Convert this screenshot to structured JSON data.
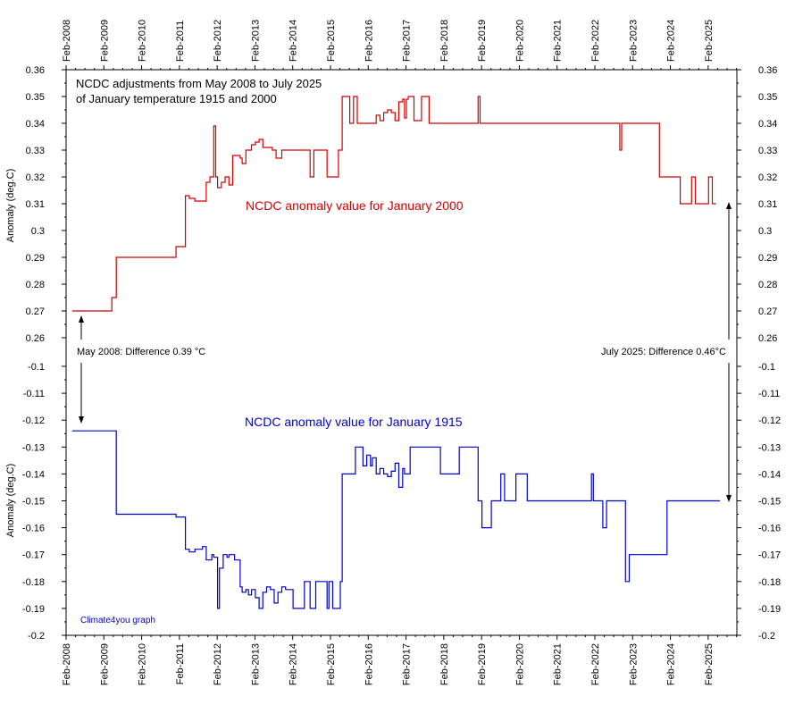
{
  "chart_data": {
    "type": "line",
    "title_lines": [
      "NCDC adjustments from May 2008 to July 2025",
      "of January temperature 1915 and 2000"
    ],
    "x_tick_labels": [
      "Feb-2008",
      "Feb-2009",
      "Feb-2010",
      "Feb-2011",
      "Feb-2012",
      "Feb-2013",
      "Feb-2014",
      "Feb-2015",
      "Feb-2016",
      "Feb-2017",
      "Feb-2018",
      "Feb-2019",
      "Feb-2020",
      "Feb-2021",
      "Feb-2022",
      "Feb-2023",
      "Feb-2024",
      "Feb-2025"
    ],
    "x_range": [
      2008.09,
      2025.85
    ],
    "top_panel": {
      "ylabel": "Anomaly (deg.C)",
      "y_ticks": [
        "0.36",
        "0.35",
        "0.34",
        "0.33",
        "0.32",
        "0.31",
        "0.3",
        "0.29",
        "0.28",
        "0.27",
        "0.26"
      ],
      "ylim": [
        0.26,
        0.36
      ],
      "series_label": "NCDC anomaly value for January 2000",
      "color": "#d40000",
      "x": [
        2008.25,
        2008.5,
        2008.8,
        2009.0,
        2009.3,
        2009.42,
        2010.0,
        2010.5,
        2011.0,
        2011.25,
        2011.35,
        2011.5,
        2011.7,
        2011.8,
        2011.9,
        2012.0,
        2012.05,
        2012.1,
        2012.2,
        2012.3,
        2012.4,
        2012.5,
        2012.7,
        2012.75,
        2012.85,
        2012.92,
        2013.0,
        2013.1,
        2013.2,
        2013.3,
        2013.45,
        2013.55,
        2013.65,
        2013.8,
        2013.9,
        2014.0,
        2014.5,
        2014.55,
        2014.65,
        2014.95,
        2015.0,
        2015.3,
        2015.4,
        2015.6,
        2015.7,
        2015.8,
        2015.95,
        2016.0,
        2016.3,
        2016.4,
        2016.5,
        2016.6,
        2016.7,
        2016.8,
        2016.9,
        2017.0,
        2017.05,
        2017.1,
        2017.15,
        2017.2,
        2017.3,
        2017.5,
        2017.7,
        2018.0,
        2018.4,
        2019.0,
        2019.05,
        2019.1,
        2020.0,
        2021.0,
        2022.0,
        2022.7,
        2022.75,
        2022.8,
        2023.0,
        2023.3,
        2023.5,
        2023.8,
        2024.0,
        2024.3,
        2024.35,
        2024.65,
        2024.75,
        2025.0,
        2025.1,
        2025.2
      ],
      "y": [
        0.27,
        0.27,
        0.27,
        0.27,
        0.275,
        0.29,
        0.29,
        0.29,
        0.294,
        0.313,
        0.312,
        0.311,
        0.311,
        0.318,
        0.32,
        0.339,
        0.32,
        0.316,
        0.318,
        0.32,
        0.317,
        0.328,
        0.327,
        0.325,
        0.33,
        0.33,
        0.332,
        0.333,
        0.334,
        0.331,
        0.331,
        0.33,
        0.327,
        0.33,
        0.33,
        0.33,
        0.33,
        0.32,
        0.33,
        0.33,
        0.32,
        0.33,
        0.35,
        0.34,
        0.35,
        0.34,
        0.34,
        0.34,
        0.343,
        0.341,
        0.344,
        0.345,
        0.344,
        0.341,
        0.348,
        0.349,
        0.342,
        0.349,
        0.35,
        0.35,
        0.341,
        0.35,
        0.34,
        0.34,
        0.34,
        0.35,
        0.34,
        0.34,
        0.34,
        0.34,
        0.34,
        0.34,
        0.33,
        0.34,
        0.34,
        0.34,
        0.34,
        0.32,
        0.32,
        0.32,
        0.31,
        0.32,
        0.31,
        0.31,
        0.32,
        0.31
      ]
    },
    "bottom_panel": {
      "ylabel": "Anomaly (deg.C)",
      "y_ticks": [
        "-0.1",
        "-0.11",
        "-0.12",
        "-0.13",
        "-0.14",
        "-0.15",
        "-0.16",
        "-0.17",
        "-0.18",
        "-0.19",
        "-0.2"
      ],
      "ylim": [
        -0.2,
        -0.1
      ],
      "series_label": "NCDC anomaly value for January 1915",
      "color": "#0000cc",
      "x": [
        2008.25,
        2008.6,
        2009.0,
        2009.3,
        2009.42,
        2010.0,
        2010.5,
        2011.0,
        2011.25,
        2011.35,
        2011.5,
        2011.7,
        2011.8,
        2011.95,
        2012.0,
        2012.1,
        2012.15,
        2012.25,
        2012.35,
        2012.4,
        2012.55,
        2012.7,
        2012.75,
        2012.85,
        2012.92,
        2013.0,
        2013.1,
        2013.2,
        2013.3,
        2013.4,
        2013.5,
        2013.6,
        2013.7,
        2013.8,
        2013.9,
        2014.0,
        2014.1,
        2014.4,
        2014.5,
        2014.55,
        2014.7,
        2014.95,
        2015.0,
        2015.05,
        2015.15,
        2015.35,
        2015.4,
        2015.5,
        2015.75,
        2015.95,
        2016.05,
        2016.15,
        2016.2,
        2016.3,
        2016.4,
        2016.5,
        2016.6,
        2016.7,
        2016.8,
        2016.9,
        2017.0,
        2017.05,
        2017.1,
        2017.2,
        2017.3,
        2017.55,
        2017.8,
        2018.0,
        2018.5,
        2018.95,
        2019.0,
        2019.05,
        2019.1,
        2019.35,
        2019.6,
        2019.7,
        2019.75,
        2020.0,
        2020.3,
        2020.35,
        2020.5,
        2021.0,
        2022.0,
        2022.05,
        2022.1,
        2022.3,
        2022.4,
        2022.7,
        2022.9,
        2023.0,
        2023.5,
        2023.8,
        2024.0,
        2024.5,
        2025.0,
        2025.3
      ],
      "y": [
        -0.124,
        -0.124,
        -0.124,
        -0.124,
        -0.155,
        -0.155,
        -0.155,
        -0.156,
        -0.168,
        -0.169,
        -0.168,
        -0.167,
        -0.172,
        -0.17,
        -0.171,
        -0.19,
        -0.175,
        -0.17,
        -0.171,
        -0.17,
        -0.172,
        -0.182,
        -0.184,
        -0.183,
        -0.185,
        -0.183,
        -0.186,
        -0.19,
        -0.184,
        -0.182,
        -0.183,
        -0.188,
        -0.184,
        -0.182,
        -0.183,
        -0.183,
        -0.19,
        -0.18,
        -0.18,
        -0.19,
        -0.18,
        -0.18,
        -0.19,
        -0.18,
        -0.19,
        -0.18,
        -0.14,
        -0.14,
        -0.13,
        -0.137,
        -0.133,
        -0.137,
        -0.134,
        -0.14,
        -0.138,
        -0.14,
        -0.141,
        -0.139,
        -0.136,
        -0.145,
        -0.138,
        -0.14,
        -0.14,
        -0.13,
        -0.13,
        -0.13,
        -0.13,
        -0.14,
        -0.13,
        -0.13,
        -0.15,
        -0.15,
        -0.16,
        -0.15,
        -0.14,
        -0.15,
        -0.15,
        -0.14,
        -0.15,
        -0.15,
        -0.15,
        -0.15,
        -0.14,
        -0.15,
        -0.15,
        -0.16,
        -0.15,
        -0.15,
        -0.18,
        -0.17,
        -0.17,
        -0.17,
        -0.15,
        -0.15,
        -0.15,
        -0.15
      ]
    },
    "annotations": {
      "left": "May 2008: Difference 0.39 °C",
      "right": "July 2025: Difference 0.46°C"
    },
    "credit": "Climate4you graph",
    "credit_color": "#0000cc",
    "grid": false
  }
}
